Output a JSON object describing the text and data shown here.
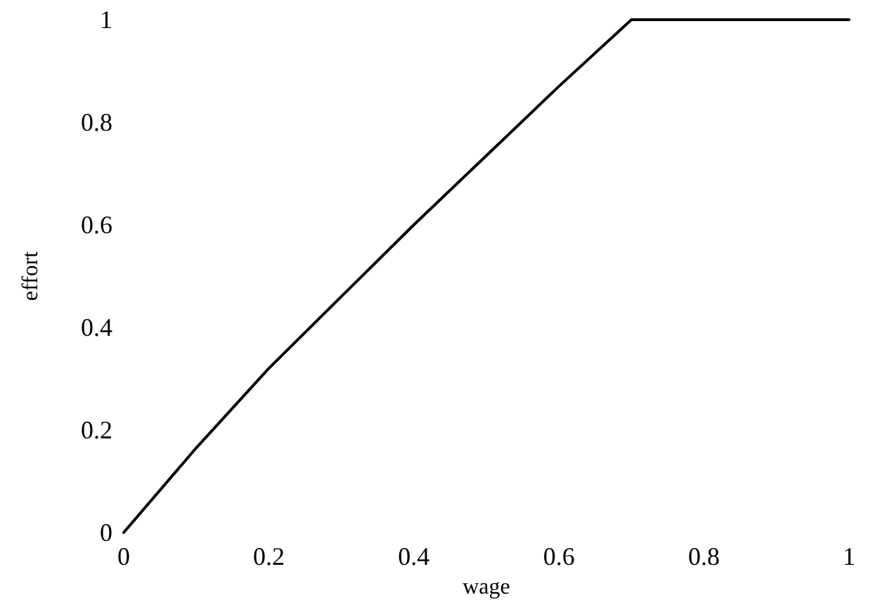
{
  "chart_data": {
    "type": "line",
    "xlabel": "wage",
    "ylabel": "effort",
    "x": [
      0,
      0.1,
      0.2,
      0.3,
      0.4,
      0.5,
      0.6,
      0.7,
      0.8,
      0.9,
      1
    ],
    "series": [
      {
        "color": "#000000",
        "values": [
          0,
          0.165,
          0.32,
          0.46,
          0.6,
          0.735,
          0.87,
          1,
          1,
          1,
          1
        ]
      }
    ],
    "xlim": [
      0,
      1
    ],
    "xticks": [
      0,
      0.2,
      0.4,
      0.6,
      0.8,
      1
    ],
    "ylim": [
      0,
      1
    ],
    "yticks": [
      0,
      0.2,
      0.4,
      0.6,
      0.8,
      1
    ],
    "grid": false,
    "marker": "none",
    "line_style": "solid"
  }
}
